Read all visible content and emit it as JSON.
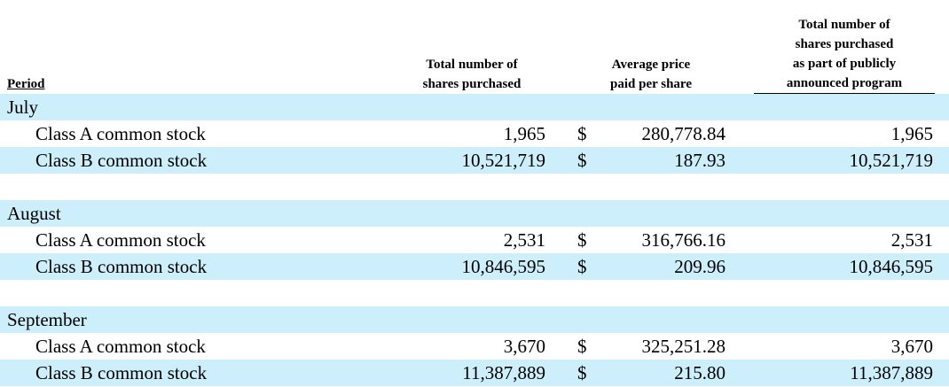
{
  "header": {
    "period": "Period",
    "total_shares": [
      "Total number of",
      "shares purchased"
    ],
    "avg_price": [
      "Average price",
      "paid per share"
    ],
    "program_shares": [
      "Total number of",
      "shares purchased",
      "as part of publicly",
      "announced program"
    ]
  },
  "currency_symbol": "$",
  "months": [
    {
      "name": "July",
      "rows": [
        {
          "label": "Class A common stock",
          "total": "1,965",
          "avg": "280,778.84",
          "program": "1,965"
        },
        {
          "label": "Class B common stock",
          "total": "10,521,719",
          "avg": "187.93",
          "program": "10,521,719"
        }
      ]
    },
    {
      "name": "August",
      "rows": [
        {
          "label": "Class A common stock",
          "total": "2,531",
          "avg": "316,766.16",
          "program": "2,531"
        },
        {
          "label": "Class B common stock",
          "total": "10,846,595",
          "avg": "209.96",
          "program": "10,846,595"
        }
      ]
    },
    {
      "name": "September",
      "rows": [
        {
          "label": "Class A common stock",
          "total": "3,670",
          "avg": "325,251.28",
          "program": "3,670"
        },
        {
          "label": "Class B common stock",
          "total": "11,387,889",
          "avg": "215.80",
          "program": "11,387,889"
        }
      ]
    }
  ]
}
